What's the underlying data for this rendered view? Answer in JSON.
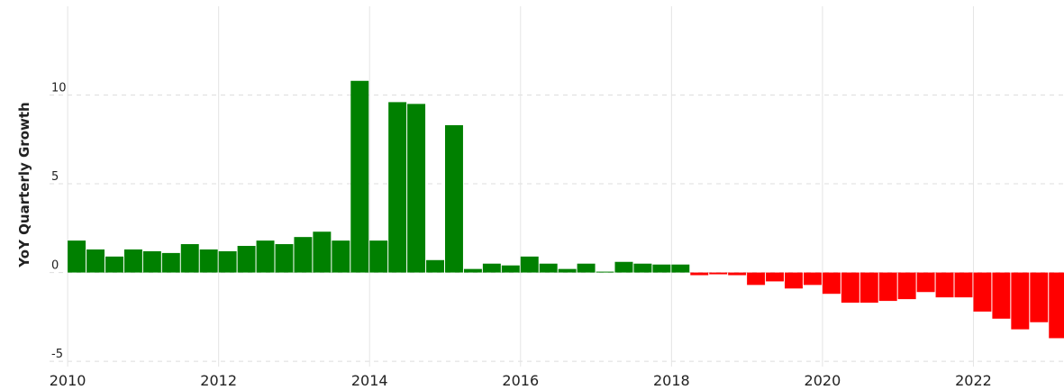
{
  "chart_data": {
    "type": "bar",
    "y_label": "YoY Quarterly Growth",
    "x": [
      2010,
      2010.25,
      2010.5,
      2010.75,
      2011,
      2011.25,
      2011.5,
      2011.75,
      2012,
      2012.25,
      2012.5,
      2012.75,
      2013,
      2013.25,
      2013.5,
      2013.75,
      2014,
      2014.25,
      2014.5,
      2014.75,
      2015,
      2015.25,
      2015.5,
      2015.75,
      2016,
      2016.25,
      2016.5,
      2016.75,
      2017,
      2017.25,
      2017.5,
      2017.75,
      2018,
      2018.25,
      2018.5,
      2018.75,
      2019,
      2019.25,
      2019.5,
      2019.75,
      2020,
      2020.25,
      2020.5,
      2020.75,
      2021,
      2021.25,
      2021.5,
      2021.75,
      2022,
      2022.25,
      2022.5,
      2022.75,
      2023
    ],
    "values": [
      1.8,
      1.3,
      0.9,
      1.3,
      1.2,
      1.1,
      1.6,
      1.3,
      1.2,
      1.5,
      1.8,
      1.6,
      2.0,
      2.3,
      1.8,
      10.8,
      1.8,
      9.6,
      9.5,
      0.7,
      8.3,
      0.2,
      0.5,
      0.4,
      0.9,
      0.5,
      0.2,
      0.5,
      0.05,
      0.6,
      0.5,
      0.45,
      0.45,
      -0.15,
      -0.1,
      -0.15,
      -0.7,
      -0.5,
      -0.9,
      -0.7,
      -1.2,
      -1.7,
      -1.7,
      -1.6,
      -1.5,
      -1.1,
      -1.4,
      -1.4,
      -2.2,
      -2.6,
      -3.2,
      -2.8,
      -3.7
    ],
    "positive_color": "#008000",
    "negative_color": "#ff0000",
    "xlim": [
      2009.76,
      2023.2
    ],
    "xticks": [
      2010,
      2012,
      2014,
      2016,
      2018,
      2020,
      2022
    ],
    "ylim": [
      -5.3,
      15
    ],
    "yticks": [
      -5,
      0,
      5,
      10
    ],
    "grid": true
  }
}
